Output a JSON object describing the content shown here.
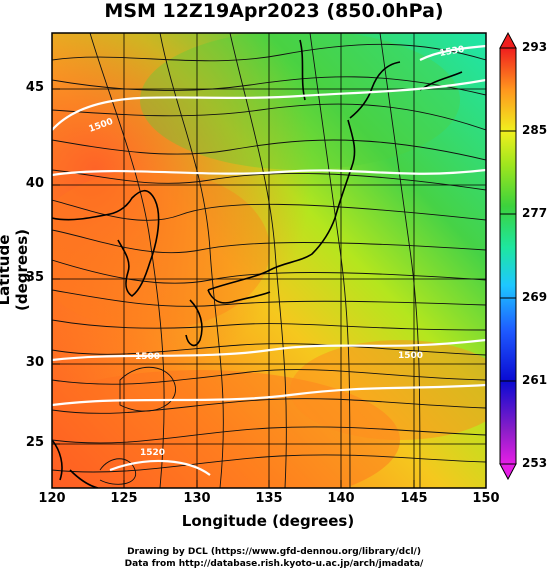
{
  "title": "MSM 12Z19Apr2023 (850.0hPa)",
  "axes": {
    "xlabel": "Longitude (degrees)",
    "ylabel": "Latitude  (degrees)",
    "xticks": [
      "120",
      "125",
      "130",
      "135",
      "140",
      "145",
      "150"
    ],
    "yticks": [
      "45",
      "40",
      "35",
      "30",
      "25"
    ]
  },
  "colorbar": {
    "ticks": [
      "293",
      "285",
      "277",
      "269",
      "261",
      "253"
    ],
    "min": 253,
    "max": 293
  },
  "contour_labels": [
    "1500",
    "1530",
    "1500",
    "1500",
    "1520"
  ],
  "credits": {
    "line1": "Drawing by DCL (https://www.gfd-dennou.org/library/dcl/)",
    "line2": "Data from http://database.rish.kyoto-u.ac.jp/arch/jmadata/"
  },
  "colors": {
    "warm": "#ff5a1e",
    "orange": "#ff8c1e",
    "yellow": "#e6e61e",
    "green": "#3cd23c",
    "cyan": "#1ee6b4",
    "blue": "#1e1ebe",
    "magenta": "#dc1edc"
  }
}
